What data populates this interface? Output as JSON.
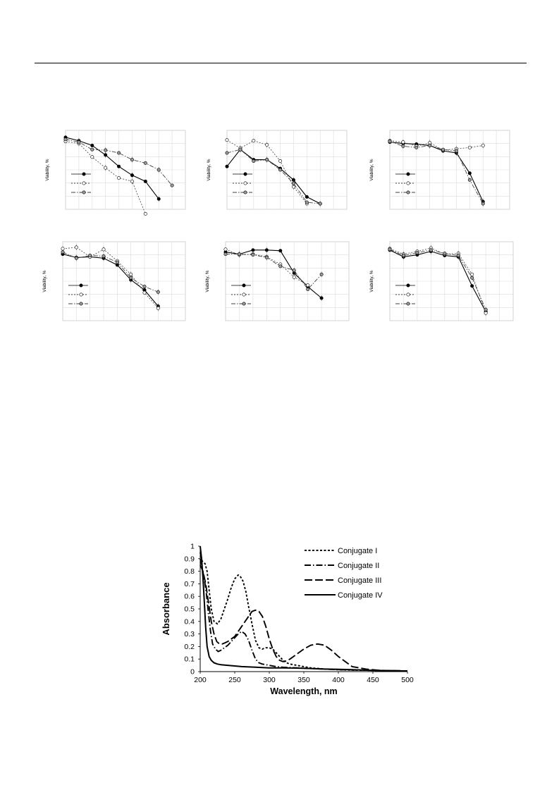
{
  "page": {
    "has_header_rule": true
  },
  "figure_panels": {
    "ylabel": "Viability, %",
    "panels": [
      {
        "series": [
          {
            "style": "solid",
            "marker": "filled",
            "values": [
              98,
              93,
              86,
              72,
              55,
              42,
              33,
              7
            ]
          },
          {
            "style": "dotted",
            "marker": "open",
            "values": [
              92,
              89,
              69,
              53,
              38,
              33,
              -15
            ]
          },
          {
            "style": "dashdot",
            "marker": "grey",
            "values": [
              95,
              91,
              80,
              79,
              75,
              65,
              60,
              50,
              27
            ]
          }
        ]
      },
      {
        "series": [
          {
            "style": "solid",
            "marker": "filled",
            "values": [
              55,
              80,
              65,
              65,
              52,
              35,
              10,
              0
            ]
          },
          {
            "style": "dotted",
            "marker": "open",
            "values": [
              94,
              82,
              93,
              87,
              63,
              25,
              0
            ]
          },
          {
            "style": "dashdot",
            "marker": "grey",
            "values": [
              75,
              80,
              63,
              65,
              50,
              30,
              2,
              0
            ]
          }
        ]
      },
      {
        "series": [
          {
            "style": "solid",
            "marker": "filled",
            "values": [
              91,
              89,
              88,
              86,
              78,
              75,
              45,
              3
            ]
          },
          {
            "style": "dotted",
            "marker": "open",
            "values": [
              93,
              91,
              85,
              90,
              79,
              81,
              83,
              86
            ]
          },
          {
            "style": "dashdot",
            "marker": "grey",
            "values": [
              92,
              85,
              83,
              86,
              80,
              78,
              35,
              0
            ]
          }
        ]
      },
      {
        "series": [
          {
            "style": "solid",
            "marker": "filled",
            "values": [
              90,
              85,
              86,
              84,
              74,
              52,
              37,
              13
            ]
          },
          {
            "style": "dotted",
            "marker": "open",
            "values": [
              98,
              100,
              86,
              97,
              80,
              60,
              33,
              10
            ]
          },
          {
            "style": "dashdot",
            "marker": "grey",
            "values": [
              93,
              84,
              88,
              87,
              78,
              55,
              42,
              34
            ]
          }
        ]
      },
      {
        "series": [
          {
            "style": "solid",
            "marker": "filled",
            "values": [
              93,
              90,
              96,
              96,
              95,
              62,
              42,
              25
            ]
          },
          {
            "style": "dotted",
            "marker": "open",
            "values": [
              97,
              89,
              90,
              86,
              75,
              56,
              44
            ]
          },
          {
            "style": "dashdot",
            "marker": "grey",
            "values": [
              90,
              90,
              89,
              85,
              72,
              66,
              38,
              60
            ]
          }
        ]
      },
      {
        "series": [
          {
            "style": "solid",
            "marker": "filled",
            "values": [
              96,
              86,
              89,
              94,
              88,
              86,
              43,
              5
            ]
          },
          {
            "style": "dotted",
            "marker": "open",
            "values": [
              98,
              90,
              94,
              99,
              90,
              91,
              60,
              3
            ]
          },
          {
            "style": "dashdot",
            "marker": "grey",
            "values": [
              97,
              88,
              92,
              96,
              91,
              88,
              55,
              8
            ]
          }
        ]
      }
    ]
  },
  "chart_data": {
    "type": "line",
    "title": "",
    "xlabel": "Wavelength, nm",
    "ylabel": "Absorbance",
    "xlim": [
      200,
      500
    ],
    "ylim": [
      0,
      1
    ],
    "xticks": [
      "200",
      "250",
      "300",
      "350",
      "400",
      "450",
      "500"
    ],
    "yticks": [
      "0",
      "0.1",
      "0.2",
      "0.3",
      "0.4",
      "0.5",
      "0.6",
      "0.7",
      "0.8",
      "0.9",
      "1"
    ],
    "grid": false,
    "legend_position": "top-right",
    "series": [
      {
        "name": "Conjugate I",
        "dash": "3 2.5",
        "x": [
          200,
          203,
          207,
          210,
          213,
          216,
          220,
          225,
          230,
          235,
          240,
          245,
          250,
          255,
          258,
          262,
          266,
          270,
          275,
          280,
          285,
          290,
          295,
          300,
          305,
          310,
          315,
          320,
          325,
          330,
          335,
          340,
          350,
          360,
          380,
          400,
          420,
          450,
          500
        ],
        "y": [
          0.95,
          0.88,
          0.86,
          0.8,
          0.65,
          0.5,
          0.4,
          0.38,
          0.42,
          0.5,
          0.58,
          0.67,
          0.74,
          0.77,
          0.76,
          0.72,
          0.64,
          0.52,
          0.38,
          0.25,
          0.19,
          0.18,
          0.19,
          0.19,
          0.18,
          0.15,
          0.12,
          0.09,
          0.07,
          0.06,
          0.055,
          0.05,
          0.04,
          0.03,
          0.02,
          0.015,
          0.012,
          0.01,
          0.005
        ]
      },
      {
        "name": "Conjugate II",
        "dash": "9 3 1.5 3",
        "x": [
          200,
          203,
          206,
          209,
          212,
          215,
          218,
          222,
          226,
          230,
          235,
          240,
          245,
          250,
          255,
          260,
          265,
          270,
          275,
          280,
          285,
          290,
          295,
          300,
          310,
          320,
          340,
          360,
          380,
          400,
          450,
          500
        ],
        "y": [
          0.9,
          0.82,
          0.74,
          0.62,
          0.46,
          0.32,
          0.22,
          0.18,
          0.16,
          0.17,
          0.19,
          0.21,
          0.24,
          0.27,
          0.3,
          0.32,
          0.3,
          0.25,
          0.17,
          0.1,
          0.07,
          0.06,
          0.055,
          0.05,
          0.04,
          0.035,
          0.03,
          0.025,
          0.02,
          0.015,
          0.01,
          0.005
        ]
      },
      {
        "name": "Conjugate III",
        "dash": "11 4",
        "x": [
          200,
          204,
          208,
          212,
          216,
          220,
          224,
          228,
          232,
          236,
          240,
          245,
          250,
          255,
          260,
          265,
          270,
          275,
          280,
          285,
          290,
          295,
          300,
          305,
          310,
          315,
          320,
          325,
          330,
          340,
          350,
          360,
          370,
          380,
          390,
          400,
          410,
          420,
          440,
          460,
          500
        ],
        "y": [
          0.85,
          0.8,
          0.7,
          0.55,
          0.4,
          0.3,
          0.24,
          0.22,
          0.22,
          0.23,
          0.24,
          0.26,
          0.28,
          0.32,
          0.36,
          0.4,
          0.44,
          0.48,
          0.49,
          0.48,
          0.44,
          0.36,
          0.26,
          0.18,
          0.12,
          0.09,
          0.08,
          0.085,
          0.1,
          0.14,
          0.18,
          0.21,
          0.22,
          0.21,
          0.17,
          0.12,
          0.08,
          0.04,
          0.02,
          0.01,
          0.005
        ]
      },
      {
        "name": "Conjugate IV",
        "dash": "",
        "x": [
          200,
          202,
          204,
          206,
          208,
          210,
          213,
          216,
          220,
          225,
          230,
          240,
          250,
          260,
          280,
          300,
          320,
          340,
          360,
          380,
          400,
          420,
          450,
          500
        ],
        "y": [
          1.0,
          0.9,
          0.75,
          0.55,
          0.35,
          0.2,
          0.12,
          0.09,
          0.07,
          0.06,
          0.055,
          0.05,
          0.045,
          0.04,
          0.035,
          0.03,
          0.03,
          0.028,
          0.025,
          0.02,
          0.018,
          0.015,
          0.01,
          0.005
        ]
      }
    ]
  }
}
